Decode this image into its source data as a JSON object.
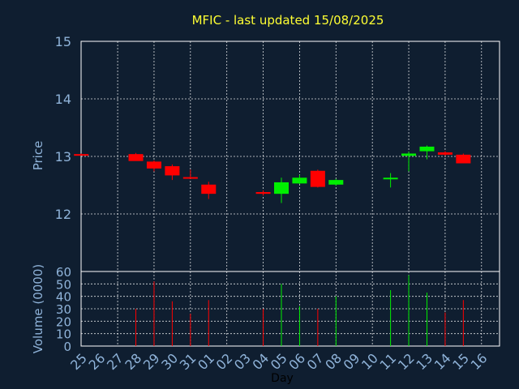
{
  "chart_data": {
    "type": "candlestick",
    "title": "MFIC - last updated 15/08/2025",
    "ylabel": "Price",
    "volume_label": "Volume (0000)",
    "xlabel": "Day",
    "ylim": [
      11,
      15
    ],
    "yticks": [
      12,
      13,
      14,
      15
    ],
    "volume_ylim": [
      0,
      60
    ],
    "volume_yticks": [
      0,
      10,
      20,
      30,
      40,
      50,
      60
    ],
    "x_ticks": [
      "25",
      "26",
      "27",
      "28",
      "29",
      "30",
      "31",
      "01",
      "02",
      "03",
      "04",
      "05",
      "06",
      "07",
      "08",
      "09",
      "10",
      "11",
      "12",
      "13",
      "14",
      "15",
      "16"
    ],
    "colors": {
      "up": "#00ee00",
      "down": "#ff0000",
      "background": "#0f1e30",
      "title": "#ffff33",
      "axis_text": "#8fb3d9"
    },
    "candles": [
      {
        "day": "25",
        "open": 13.04,
        "high": 13.05,
        "low": 13.03,
        "close": 13.03,
        "volume": 0
      },
      {
        "day": "28",
        "open": 13.04,
        "high": 13.06,
        "low": 12.93,
        "close": 12.92,
        "volume": 30
      },
      {
        "day": "29",
        "open": 12.91,
        "high": 12.93,
        "low": 12.74,
        "close": 12.79,
        "volume": 52
      },
      {
        "day": "30",
        "open": 12.83,
        "high": 12.86,
        "low": 12.59,
        "close": 12.67,
        "volume": 36
      },
      {
        "day": "31",
        "open": 12.64,
        "high": 12.77,
        "low": 12.61,
        "close": 12.62,
        "volume": 26
      },
      {
        "day": "01",
        "open": 12.51,
        "high": 12.56,
        "low": 12.26,
        "close": 12.35,
        "volume": 37
      },
      {
        "day": "04",
        "open": 12.38,
        "high": 12.41,
        "low": 12.32,
        "close": 12.35,
        "volume": 30
      },
      {
        "day": "05",
        "open": 12.35,
        "high": 12.63,
        "low": 12.19,
        "close": 12.55,
        "volume": 50
      },
      {
        "day": "06",
        "open": 12.53,
        "high": 12.68,
        "low": 12.52,
        "close": 12.63,
        "volume": 32
      },
      {
        "day": "07",
        "open": 12.75,
        "high": 12.77,
        "low": 12.46,
        "close": 12.47,
        "volume": 30
      },
      {
        "day": "08",
        "open": 12.51,
        "high": 12.61,
        "low": 12.49,
        "close": 12.59,
        "volume": 40
      },
      {
        "day": "11",
        "open": 12.61,
        "high": 12.71,
        "low": 12.46,
        "close": 12.63,
        "volume": 45
      },
      {
        "day": "12",
        "open": 13.01,
        "high": 13.08,
        "low": 12.74,
        "close": 13.05,
        "volume": 57
      },
      {
        "day": "13",
        "open": 13.09,
        "high": 13.19,
        "low": 12.95,
        "close": 13.17,
        "volume": 43
      },
      {
        "day": "14",
        "open": 13.07,
        "high": 13.09,
        "low": 13.01,
        "close": 13.03,
        "volume": 27
      },
      {
        "day": "15",
        "open": 13.03,
        "high": 13.05,
        "low": 12.88,
        "close": 12.88,
        "volume": 37
      }
    ]
  }
}
